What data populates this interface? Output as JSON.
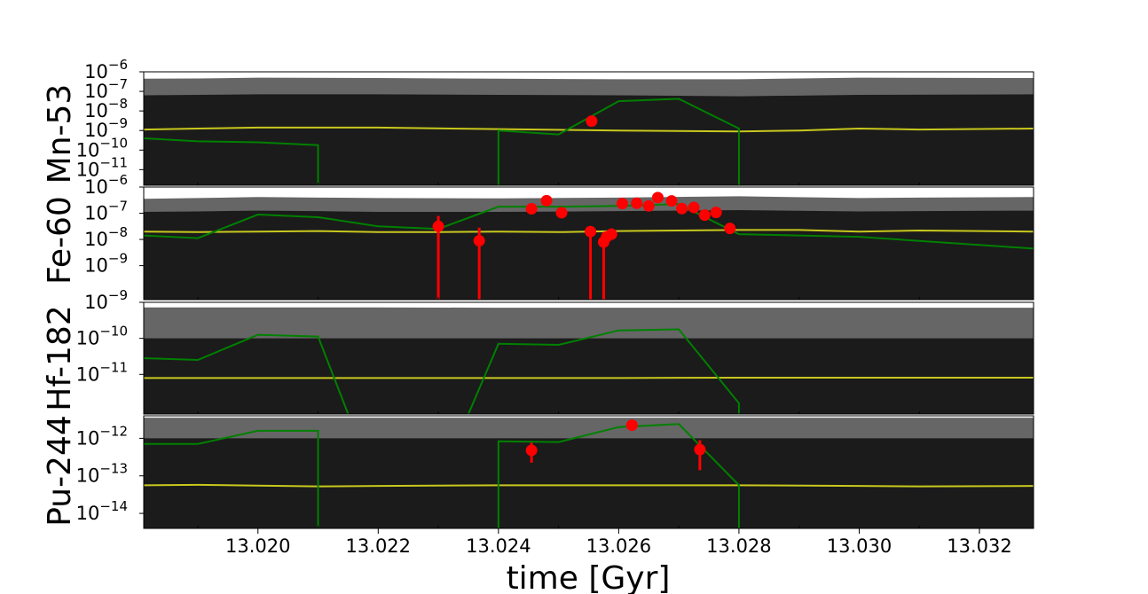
{
  "chart_data": {
    "type": "line",
    "xlabel": "time [Gyr]",
    "xlim": [
      13.0181,
      13.0329
    ],
    "x_ticks": [
      "13.020",
      "13.022",
      "13.024",
      "13.026",
      "13.028",
      "13.030",
      "13.032"
    ],
    "x_tick_values": [
      13.02,
      13.022,
      13.024,
      13.026,
      13.028,
      13.03,
      13.032
    ],
    "colors": {
      "outer_band": "#666666",
      "inner_band": "#1b1b1b",
      "median": "#c8c81e",
      "model": "#008000",
      "data": "#ff0000"
    },
    "panels": [
      {
        "ylabel": "Mn-53",
        "ylim_log10": [
          -11.8,
          -6
        ],
        "y_ticks": [
          {
            "exp": -6,
            "label": "-6"
          },
          {
            "exp": -7,
            "label": "-7"
          },
          {
            "exp": -8,
            "label": "-8"
          },
          {
            "exp": -9,
            "label": "-9"
          },
          {
            "exp": -10,
            "label": "-10"
          },
          {
            "exp": -11,
            "label": "-11"
          }
        ],
        "band_x": [
          13.0181,
          13.019,
          13.02,
          13.022,
          13.024,
          13.026,
          13.028,
          13.03,
          13.0329
        ],
        "outer_hi": [
          -6.35,
          -6.34,
          -6.3,
          -6.32,
          -6.35,
          -6.38,
          -6.38,
          -6.3,
          -6.32
        ],
        "inner_hi": [
          -7.2,
          -7.18,
          -7.15,
          -7.15,
          -7.18,
          -7.2,
          -7.25,
          -7.18,
          -7.15
        ],
        "median": {
          "x": [
            13.0181,
            13.019,
            13.02,
            13.022,
            13.024,
            13.026,
            13.028,
            13.029,
            13.03,
            13.031,
            13.0329
          ],
          "y": [
            -8.95,
            -8.9,
            -8.85,
            -8.85,
            -8.93,
            -9.0,
            -9.05,
            -9.0,
            -8.9,
            -8.95,
            -8.9
          ]
        },
        "model": [
          {
            "x": [
              13.0181,
              13.019,
              13.02,
              13.021,
              13.021
            ],
            "y": [
              -9.4,
              -9.55,
              -9.6,
              -9.75,
              -11.8
            ]
          },
          {
            "x": [
              13.024,
              13.024,
              13.025,
              13.026,
              13.027,
              13.028,
              13.028
            ],
            "y": [
              -11.8,
              -9.0,
              -9.2,
              -7.5,
              -7.38,
              -8.9,
              -11.8
            ]
          }
        ],
        "points": [
          {
            "x": 13.02555,
            "y": -8.52
          }
        ]
      },
      {
        "ylabel": "Fe-60",
        "ylim_log10": [
          -10.3,
          -6
        ],
        "y_ticks": [
          {
            "exp": -6,
            "label": "-6"
          },
          {
            "exp": -7,
            "label": "-7"
          },
          {
            "exp": -8,
            "label": "-8"
          },
          {
            "exp": -9,
            "label": "-9"
          }
        ],
        "band_x": [
          13.0181,
          13.019,
          13.02,
          13.021,
          13.022,
          13.024,
          13.026,
          13.028,
          13.03,
          13.031,
          13.0329
        ],
        "outer_lo": [
          -9.2,
          -9.28,
          -9.3,
          -9.2,
          -9.25,
          -9.2,
          -9.25,
          -9.18,
          -9.25,
          -9.2,
          -9.15
        ],
        "outer_hi": [
          -6.45,
          -6.42,
          -6.38,
          -6.4,
          -6.42,
          -6.43,
          -6.4,
          -6.35,
          -6.42,
          -6.4,
          -6.38
        ],
        "inner_hi": [
          -6.95,
          -6.93,
          -6.9,
          -6.92,
          -6.95,
          -6.95,
          -6.92,
          -6.88,
          -6.93,
          -6.92,
          -6.9
        ],
        "median": {
          "x": [
            13.0181,
            13.019,
            13.02,
            13.021,
            13.022,
            13.023,
            13.024,
            13.025,
            13.026,
            13.027,
            13.028,
            13.029,
            13.03,
            13.031,
            13.0329
          ],
          "y": [
            -7.7,
            -7.72,
            -7.7,
            -7.68,
            -7.72,
            -7.72,
            -7.7,
            -7.72,
            -7.68,
            -7.66,
            -7.64,
            -7.64,
            -7.7,
            -7.66,
            -7.7
          ]
        },
        "model": [
          {
            "x": [
              13.0181,
              13.019,
              13.02,
              13.021,
              13.022,
              13.023,
              13.024,
              13.025,
              13.026,
              13.027,
              13.028,
              13.03,
              13.0329
            ],
            "y": [
              -7.85,
              -7.95,
              -7.05,
              -7.15,
              -7.5,
              -7.6,
              -6.75,
              -6.75,
              -6.72,
              -6.65,
              -7.8,
              -7.9,
              -8.35
            ]
          }
        ],
        "points": [
          {
            "x": 13.023,
            "y": -7.5,
            "err_lo": -10.3,
            "err_hi": -7.1
          },
          {
            "x": 13.02368,
            "y": -8.05,
            "err_lo": -10.3,
            "err_hi": -7.55
          },
          {
            "x": 13.02455,
            "y": -6.83
          },
          {
            "x": 13.0248,
            "y": -6.52
          },
          {
            "x": 13.02505,
            "y": -6.98
          },
          {
            "x": 13.02553,
            "y": -7.7,
            "err_lo": -10.3,
            "err_hi": -7.55
          },
          {
            "x": 13.02575,
            "y": -8.1,
            "err_lo": -10.3,
            "err_hi": -7.95
          },
          {
            "x": 13.0258,
            "y": -7.9
          },
          {
            "x": 13.02588,
            "y": -7.8
          },
          {
            "x": 13.02606,
            "y": -6.63
          },
          {
            "x": 13.0263,
            "y": -6.62
          },
          {
            "x": 13.0265,
            "y": -6.72
          },
          {
            "x": 13.02665,
            "y": -6.4
          },
          {
            "x": 13.02688,
            "y": -6.53
          },
          {
            "x": 13.02705,
            "y": -6.82
          },
          {
            "x": 13.02725,
            "y": -6.78
          },
          {
            "x": 13.02743,
            "y": -7.07
          },
          {
            "x": 13.02762,
            "y": -6.97
          },
          {
            "x": 13.02785,
            "y": -7.58
          }
        ]
      },
      {
        "ylabel": "Hf-182",
        "ylim_log10": [
          -12.1,
          -9
        ],
        "y_ticks": [
          {
            "exp": -9,
            "label": "-9"
          },
          {
            "exp": -10,
            "label": "-10"
          },
          {
            "exp": -11,
            "label": "-11"
          }
        ],
        "band_x": [
          13.0181,
          13.019,
          13.02,
          13.022,
          13.024,
          13.026,
          13.028,
          13.03,
          13.0329
        ],
        "outer_hi": [
          -9.14,
          -9.14,
          -9.14,
          -9.14,
          -9.15,
          -9.15,
          -9.15,
          -9.15,
          -9.15
        ],
        "inner_hi": [
          -10.0,
          -10.0,
          -10.0,
          -10.0,
          -10.0,
          -10.0,
          -10.0,
          -10.0,
          -10.0
        ],
        "median": {
          "x": [
            13.0181,
            13.02,
            13.022,
            13.024,
            13.026,
            13.028,
            13.03,
            13.0329
          ],
          "y": [
            -11.1,
            -11.1,
            -11.1,
            -11.1,
            -11.1,
            -11.09,
            -11.09,
            -11.09
          ]
        },
        "model": [
          {
            "x": [
              13.0181,
              13.019,
              13.02,
              13.021,
              13.0215
            ],
            "y": [
              -10.55,
              -10.6,
              -9.9,
              -9.95,
              -12.1
            ]
          },
          {
            "x": [
              13.0235,
              13.024,
              13.025,
              13.026,
              13.027,
              13.028,
              13.028
            ],
            "y": [
              -12.1,
              -10.15,
              -10.18,
              -9.78,
              -9.75,
              -11.8,
              -12.1
            ]
          }
        ],
        "points": []
      },
      {
        "ylabel": "Pu-244",
        "ylim_log10": [
          -14.4,
          -11.4
        ],
        "y_ticks": [
          {
            "exp": -12,
            "label": "-12"
          },
          {
            "exp": -13,
            "label": "-13"
          },
          {
            "exp": -14,
            "label": "-14"
          }
        ],
        "band_x": [
          13.0181,
          13.0329
        ],
        "outer_hi": [
          -11.45,
          -11.45
        ],
        "inner_hi": [
          -12.0,
          -12.0
        ],
        "median": {
          "x": [
            13.0181,
            13.019,
            13.02,
            13.021,
            13.022,
            13.024,
            13.026,
            13.028,
            13.03,
            13.031,
            13.0329
          ],
          "y": [
            -13.25,
            -13.24,
            -13.26,
            -13.28,
            -13.27,
            -13.25,
            -13.25,
            -13.25,
            -13.27,
            -13.28,
            -13.27
          ]
        },
        "model": [
          {
            "x": [
              13.0181,
              13.019,
              13.02,
              13.021,
              13.021
            ],
            "y": [
              -12.15,
              -12.15,
              -11.8,
              -11.8,
              -14.4
            ]
          },
          {
            "x": [
              13.024,
              13.024,
              13.025,
              13.026,
              13.027,
              13.028,
              13.028
            ],
            "y": [
              -14.4,
              -12.08,
              -12.1,
              -11.7,
              -11.62,
              -13.25,
              -14.4
            ]
          }
        ],
        "points": [
          {
            "x": 13.02455,
            "y": -12.32,
            "err_lo": -12.65,
            "err_hi": -12.12
          },
          {
            "x": 13.02622,
            "y": -11.65
          },
          {
            "x": 13.02735,
            "y": -12.3,
            "err_lo": -12.85,
            "err_hi": -12.05
          }
        ]
      }
    ]
  }
}
